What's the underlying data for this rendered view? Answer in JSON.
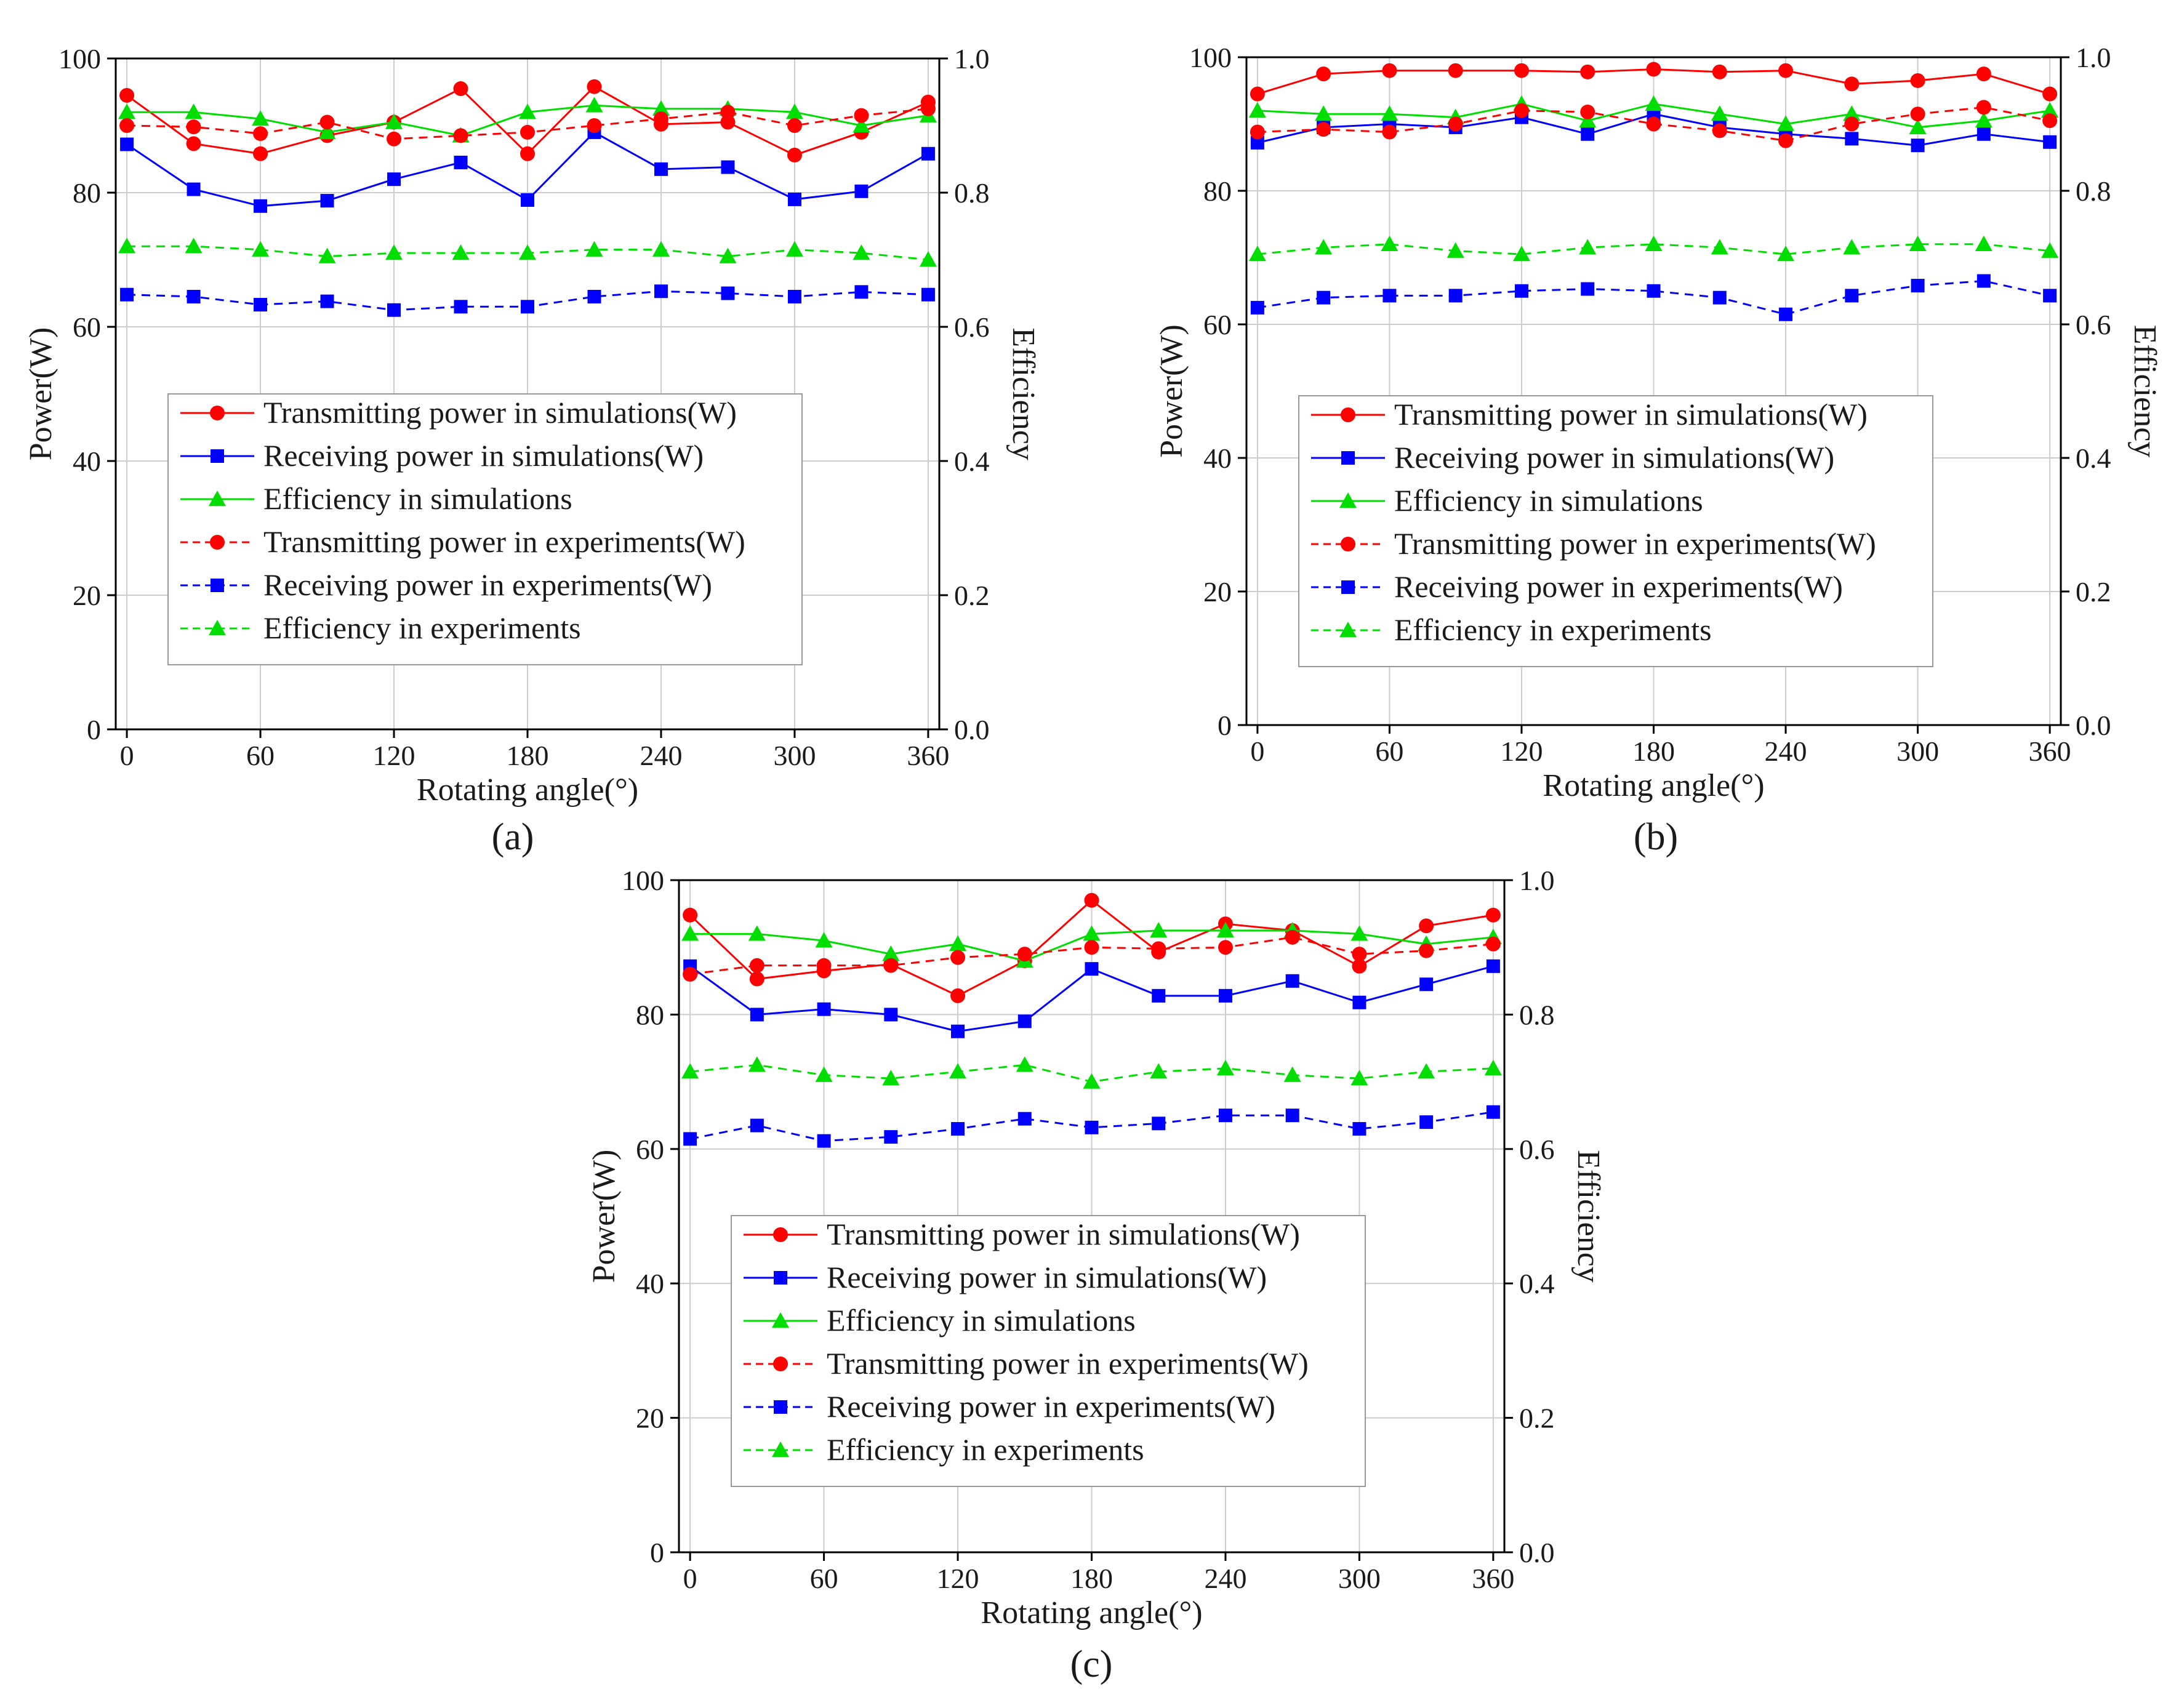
{
  "chart_data": [
    {
      "type": "line",
      "panel_label": "(a)",
      "xlabel": "Rotating angle(°)",
      "ylabel": "Power(W)",
      "y2label": "Efficiency",
      "xlim": [
        -5,
        365
      ],
      "ylim": [
        0,
        100
      ],
      "y2lim": [
        0,
        1.0
      ],
      "xticks": [
        "0",
        "60",
        "120",
        "180",
        "240",
        "300",
        "360"
      ],
      "yticks": [
        "0",
        "20",
        "40",
        "60",
        "80",
        "100"
      ],
      "y2ticks": [
        "0.0",
        "0.2",
        "0.4",
        "0.6",
        "0.8",
        "1.0"
      ],
      "grid": true,
      "legend_position": "center-left",
      "x": [
        0,
        30,
        60,
        90,
        120,
        150,
        180,
        210,
        240,
        270,
        300,
        330,
        360
      ],
      "series": [
        {
          "name": "Transmitting power in simulations(W)",
          "axis": "left",
          "style": "solid",
          "color": "#ff0000",
          "marker": "circle",
          "values": [
            94.5,
            87.3,
            85.8,
            88.5,
            90.5,
            95.5,
            85.8,
            95.8,
            90.2,
            90.5,
            85.6,
            89.0,
            93.5
          ]
        },
        {
          "name": "Receiving power in simulations(W)",
          "axis": "left",
          "style": "solid",
          "color": "#0000ff",
          "marker": "square",
          "values": [
            87.2,
            80.5,
            78.0,
            78.8,
            82.0,
            84.5,
            78.9,
            89.0,
            83.5,
            83.8,
            79.0,
            80.2,
            85.8
          ]
        },
        {
          "name": "Efficiency in simulations",
          "axis": "right",
          "style": "solid",
          "color": "#00dd00",
          "marker": "triangle",
          "values": [
            0.92,
            0.92,
            0.91,
            0.89,
            0.905,
            0.885,
            0.92,
            0.93,
            0.925,
            0.925,
            0.92,
            0.9,
            0.915
          ]
        },
        {
          "name": "Transmitting power in experiments(W)",
          "axis": "left",
          "style": "dashed",
          "color": "#ff0000",
          "marker": "circle",
          "values": [
            90.0,
            89.8,
            88.8,
            90.5,
            88.0,
            88.5,
            89.0,
            90.0,
            91.0,
            92.0,
            90.0,
            91.5,
            92.5
          ]
        },
        {
          "name": "Receiving power in experiments(W)",
          "axis": "left",
          "style": "dashed",
          "color": "#0000ff",
          "marker": "square",
          "values": [
            64.8,
            64.5,
            63.3,
            63.8,
            62.5,
            63.0,
            63.0,
            64.5,
            65.3,
            65.0,
            64.5,
            65.2,
            64.8
          ]
        },
        {
          "name": "Efficiency in experiments",
          "axis": "right",
          "style": "dashed",
          "color": "#00dd00",
          "marker": "triangle",
          "values": [
            0.72,
            0.72,
            0.715,
            0.705,
            0.71,
            0.71,
            0.71,
            0.715,
            0.715,
            0.705,
            0.715,
            0.71,
            0.7
          ]
        }
      ]
    },
    {
      "type": "line",
      "panel_label": "(b)",
      "xlabel": "Rotating angle(°)",
      "ylabel": "Power(W)",
      "y2label": "Efficiency",
      "xlim": [
        -5,
        365
      ],
      "ylim": [
        0,
        100
      ],
      "y2lim": [
        0,
        1.0
      ],
      "xticks": [
        "0",
        "60",
        "120",
        "180",
        "240",
        "300",
        "360"
      ],
      "yticks": [
        "0",
        "20",
        "40",
        "60",
        "80",
        "100"
      ],
      "y2ticks": [
        "0.0",
        "0.2",
        "0.4",
        "0.6",
        "0.8",
        "1.0"
      ],
      "grid": true,
      "legend_position": "center-left",
      "x": [
        0,
        30,
        60,
        90,
        120,
        150,
        180,
        210,
        240,
        270,
        300,
        330,
        360
      ],
      "series": [
        {
          "name": "Transmitting power in simulations(W)",
          "axis": "left",
          "style": "solid",
          "color": "#ff0000",
          "marker": "circle",
          "values": [
            94.5,
            97.5,
            98.0,
            98.0,
            98.0,
            97.8,
            98.2,
            97.8,
            98.0,
            96.0,
            96.5,
            97.5,
            94.5
          ]
        },
        {
          "name": "Receiving power in simulations(W)",
          "axis": "left",
          "style": "solid",
          "color": "#0000ff",
          "marker": "square",
          "values": [
            87.2,
            89.5,
            90.0,
            89.5,
            91.0,
            88.5,
            91.5,
            89.5,
            88.5,
            87.8,
            86.8,
            88.5,
            87.3
          ]
        },
        {
          "name": "Efficiency in simulations",
          "axis": "right",
          "style": "solid",
          "color": "#00dd00",
          "marker": "triangle",
          "values": [
            0.92,
            0.915,
            0.915,
            0.91,
            0.93,
            0.905,
            0.93,
            0.915,
            0.9,
            0.915,
            0.895,
            0.905,
            0.92
          ]
        },
        {
          "name": "Transmitting power in experiments(W)",
          "axis": "left",
          "style": "dashed",
          "color": "#ff0000",
          "marker": "circle",
          "values": [
            88.8,
            89.2,
            88.8,
            90.0,
            92.0,
            91.8,
            90.0,
            89.0,
            87.5,
            90.0,
            91.5,
            92.5,
            90.5
          ]
        },
        {
          "name": "Receiving power in experiments(W)",
          "axis": "left",
          "style": "dashed",
          "color": "#0000ff",
          "marker": "square",
          "values": [
            62.5,
            64.0,
            64.3,
            64.3,
            65.0,
            65.3,
            65.0,
            64.0,
            61.5,
            64.3,
            65.8,
            66.5,
            64.3
          ]
        },
        {
          "name": "Efficiency in experiments",
          "axis": "right",
          "style": "dashed",
          "color": "#00dd00",
          "marker": "triangle",
          "values": [
            0.705,
            0.715,
            0.72,
            0.71,
            0.705,
            0.715,
            0.72,
            0.715,
            0.705,
            0.715,
            0.72,
            0.72,
            0.71
          ]
        }
      ]
    },
    {
      "type": "line",
      "panel_label": "(c)",
      "xlabel": "Rotating angle(°)",
      "ylabel": "Power(W)",
      "y2label": "Efficiency",
      "xlim": [
        -5,
        365
      ],
      "ylim": [
        0,
        100
      ],
      "y2lim": [
        0,
        1.0
      ],
      "xticks": [
        "0",
        "60",
        "120",
        "180",
        "240",
        "300",
        "360"
      ],
      "yticks": [
        "0",
        "20",
        "40",
        "60",
        "80",
        "100"
      ],
      "y2ticks": [
        "0.0",
        "0.2",
        "0.4",
        "0.6",
        "0.8",
        "1.0"
      ],
      "grid": true,
      "legend_position": "center-left",
      "x": [
        0,
        30,
        60,
        90,
        120,
        150,
        180,
        210,
        240,
        270,
        300,
        330,
        360
      ],
      "series": [
        {
          "name": "Transmitting power in simulations(W)",
          "axis": "left",
          "style": "solid",
          "color": "#ff0000",
          "marker": "circle",
          "values": [
            94.8,
            85.3,
            86.5,
            87.5,
            82.8,
            88.0,
            97.0,
            89.3,
            93.5,
            92.5,
            87.2,
            93.2,
            94.8
          ]
        },
        {
          "name": "Receiving power in simulations(W)",
          "axis": "left",
          "style": "solid",
          "color": "#0000ff",
          "marker": "square",
          "values": [
            87.2,
            80.0,
            80.8,
            80.0,
            77.5,
            79.0,
            86.8,
            82.8,
            82.8,
            85.0,
            81.8,
            84.5,
            87.2
          ]
        },
        {
          "name": "Efficiency in simulations",
          "axis": "right",
          "style": "solid",
          "color": "#00dd00",
          "marker": "triangle",
          "values": [
            0.92,
            0.92,
            0.91,
            0.89,
            0.905,
            0.88,
            0.92,
            0.925,
            0.925,
            0.925,
            0.92,
            0.905,
            0.915
          ]
        },
        {
          "name": "Transmitting power in experiments(W)",
          "axis": "left",
          "style": "dashed",
          "color": "#ff0000",
          "marker": "circle",
          "values": [
            86.0,
            87.3,
            87.3,
            87.3,
            88.5,
            89.0,
            90.0,
            89.8,
            90.0,
            91.5,
            89.0,
            89.5,
            90.5
          ]
        },
        {
          "name": "Receiving power in experiments(W)",
          "axis": "left",
          "style": "dashed",
          "color": "#0000ff",
          "marker": "square",
          "values": [
            61.5,
            63.5,
            61.2,
            61.8,
            63.0,
            64.5,
            63.2,
            63.8,
            65.0,
            65.0,
            63.0,
            64.0,
            65.5
          ]
        },
        {
          "name": "Efficiency in experiments",
          "axis": "right",
          "style": "dashed",
          "color": "#00dd00",
          "marker": "triangle",
          "values": [
            0.715,
            0.725,
            0.71,
            0.705,
            0.715,
            0.725,
            0.7,
            0.715,
            0.72,
            0.71,
            0.705,
            0.715,
            0.72
          ]
        }
      ]
    }
  ]
}
